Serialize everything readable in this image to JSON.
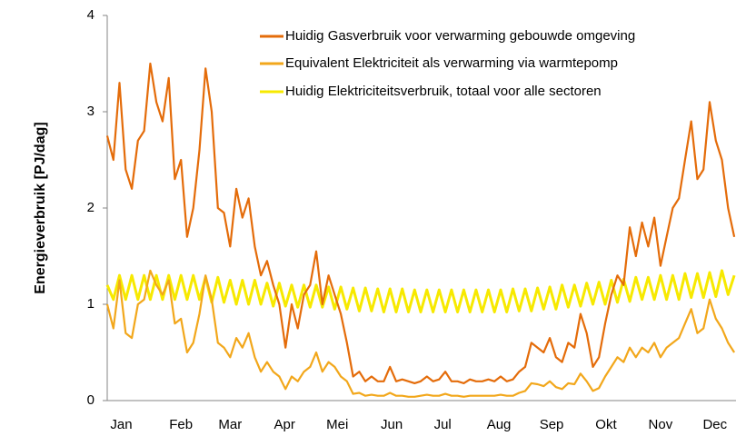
{
  "chart_data": {
    "type": "line",
    "y_label": "Energieverbruik   [PJ/dag]",
    "x": [
      0,
      3.5,
      7,
      10.5,
      14,
      17.5,
      21,
      24.5,
      28,
      31.5,
      35,
      38.5,
      42,
      45.5,
      49,
      52.5,
      56,
      59.5,
      63,
      66.5,
      70,
      73.5,
      77,
      80.5,
      84,
      87.5,
      91,
      94.5,
      98,
      101.5,
      105,
      108.5,
      112,
      115.5,
      119,
      122.5,
      126,
      129.5,
      133,
      136.5,
      140,
      143.5,
      147,
      150.5,
      154,
      157.5,
      161,
      164.5,
      168,
      171.5,
      175,
      178.5,
      182,
      185.5,
      189,
      192.5,
      196,
      199.5,
      203,
      206.5,
      210,
      213.5,
      217,
      220.5,
      224,
      227.5,
      231,
      234.5,
      238,
      241.5,
      245,
      248.5,
      252,
      255.5,
      259,
      262.5,
      266,
      269.5,
      273,
      276.5,
      280,
      283.5,
      287,
      290.5,
      294,
      297.5,
      301,
      304.5,
      308,
      311.5,
      315,
      318.5,
      322,
      325.5,
      329,
      332.5,
      336,
      339.5,
      343,
      346.5,
      350,
      353.5,
      357
    ],
    "xlim": [
      0,
      358
    ],
    "xticks": [
      {
        "value": 8,
        "label": "Jan"
      },
      {
        "value": 42,
        "label": "Feb"
      },
      {
        "value": 70,
        "label": "Mar"
      },
      {
        "value": 101,
        "label": "Apr"
      },
      {
        "value": 131,
        "label": "Mei"
      },
      {
        "value": 162,
        "label": "Jun"
      },
      {
        "value": 191,
        "label": "Jul"
      },
      {
        "value": 223,
        "label": "Aug"
      },
      {
        "value": 253,
        "label": "Sep"
      },
      {
        "value": 284,
        "label": "Okt"
      },
      {
        "value": 315,
        "label": "Nov"
      },
      {
        "value": 346,
        "label": "Dec"
      }
    ],
    "ylim": [
      0,
      4
    ],
    "yticks": [
      0,
      1,
      2,
      3,
      4
    ],
    "legend": "top-right",
    "series": [
      {
        "name": "Huidig Gasverbruik voor verwarming gebouwde omgeving",
        "color": "#e46c0a",
        "values": [
          2.75,
          2.5,
          3.3,
          2.4,
          2.2,
          2.7,
          2.8,
          3.5,
          3.1,
          2.9,
          3.35,
          2.3,
          2.5,
          1.7,
          2.0,
          2.6,
          3.45,
          3.0,
          2.0,
          1.95,
          1.6,
          2.2,
          1.9,
          2.1,
          1.6,
          1.3,
          1.45,
          1.2,
          1.0,
          0.55,
          1.0,
          0.75,
          1.1,
          1.2,
          1.55,
          1.0,
          1.3,
          1.1,
          0.9,
          0.6,
          0.25,
          0.3,
          0.2,
          0.25,
          0.2,
          0.2,
          0.35,
          0.2,
          0.22,
          0.2,
          0.18,
          0.2,
          0.25,
          0.2,
          0.22,
          0.3,
          0.2,
          0.2,
          0.18,
          0.22,
          0.2,
          0.2,
          0.22,
          0.2,
          0.25,
          0.2,
          0.22,
          0.3,
          0.35,
          0.6,
          0.55,
          0.5,
          0.65,
          0.45,
          0.4,
          0.6,
          0.55,
          0.9,
          0.7,
          0.35,
          0.45,
          0.8,
          1.1,
          1.3,
          1.2,
          1.8,
          1.5,
          1.85,
          1.6,
          1.9,
          1.4,
          1.7,
          2.0,
          2.1,
          2.5,
          2.9,
          2.3,
          2.4,
          3.1,
          2.7,
          2.5,
          2.0,
          1.7
        ]
      },
      {
        "name": "Equivalent Elektriciteit als verwarming via warmtepomp",
        "color": "#f2a71b",
        "values": [
          1.0,
          0.75,
          1.25,
          0.7,
          0.65,
          1.0,
          1.05,
          1.35,
          1.2,
          1.1,
          1.25,
          0.8,
          0.85,
          0.5,
          0.6,
          0.9,
          1.3,
          1.05,
          0.6,
          0.55,
          0.45,
          0.65,
          0.55,
          0.7,
          0.45,
          0.3,
          0.4,
          0.3,
          0.25,
          0.12,
          0.25,
          0.2,
          0.3,
          0.35,
          0.5,
          0.3,
          0.4,
          0.35,
          0.25,
          0.2,
          0.07,
          0.08,
          0.05,
          0.06,
          0.05,
          0.05,
          0.08,
          0.05,
          0.05,
          0.04,
          0.04,
          0.05,
          0.06,
          0.05,
          0.05,
          0.07,
          0.05,
          0.05,
          0.04,
          0.05,
          0.05,
          0.05,
          0.05,
          0.05,
          0.06,
          0.05,
          0.05,
          0.08,
          0.1,
          0.18,
          0.17,
          0.15,
          0.2,
          0.14,
          0.12,
          0.18,
          0.17,
          0.28,
          0.2,
          0.1,
          0.13,
          0.25,
          0.35,
          0.45,
          0.4,
          0.55,
          0.45,
          0.55,
          0.5,
          0.6,
          0.45,
          0.55,
          0.6,
          0.65,
          0.8,
          0.95,
          0.7,
          0.75,
          1.05,
          0.85,
          0.75,
          0.6,
          0.5
        ]
      },
      {
        "name": "Huidig Elektriciteitsverbruik, totaal voor alle sectoren",
        "color": "#f7e900",
        "values": [
          1.2,
          1.05,
          1.3,
          1.05,
          1.3,
          1.05,
          1.3,
          1.05,
          1.3,
          1.05,
          1.3,
          1.05,
          1.3,
          1.05,
          1.3,
          1.05,
          1.28,
          1.02,
          1.28,
          1.02,
          1.25,
          1.0,
          1.25,
          1.0,
          1.25,
          1.0,
          1.22,
          0.98,
          1.22,
          0.98,
          1.2,
          0.97,
          1.2,
          0.97,
          1.2,
          0.97,
          1.18,
          0.95,
          1.18,
          0.95,
          1.17,
          0.93,
          1.17,
          0.93,
          1.16,
          0.92,
          1.16,
          0.92,
          1.16,
          0.92,
          1.15,
          0.92,
          1.15,
          0.92,
          1.15,
          0.92,
          1.15,
          0.92,
          1.15,
          0.92,
          1.15,
          0.92,
          1.15,
          0.92,
          1.15,
          0.92,
          1.16,
          0.93,
          1.16,
          0.93,
          1.17,
          0.95,
          1.18,
          0.95,
          1.2,
          0.97,
          1.2,
          0.98,
          1.22,
          1.0,
          1.23,
          1.0,
          1.25,
          1.02,
          1.26,
          1.03,
          1.28,
          1.05,
          1.28,
          1.05,
          1.3,
          1.05,
          1.3,
          1.05,
          1.32,
          1.07,
          1.32,
          1.07,
          1.33,
          1.08,
          1.35,
          1.1,
          1.3
        ]
      }
    ]
  }
}
